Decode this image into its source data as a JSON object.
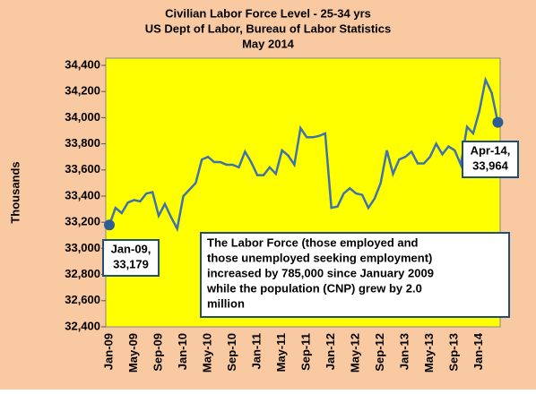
{
  "chart_data": {
    "type": "line",
    "title": [
      "Civilian Labor Force Level - 25-34 yrs",
      "US Dept of Labor, Bureau of Labor Statistics",
      "May 2014"
    ],
    "y_label": "Thousands",
    "categories": [
      "Jan-09",
      null,
      null,
      null,
      "May-09",
      null,
      null,
      null,
      "Sep-09",
      null,
      null,
      null,
      "Jan-10",
      null,
      null,
      null,
      "May-10",
      null,
      null,
      null,
      "Sep-10",
      null,
      null,
      null,
      "Jan-11",
      null,
      null,
      null,
      "May-11",
      null,
      null,
      null,
      "Sep-11",
      null,
      null,
      null,
      "Jan-12",
      null,
      null,
      null,
      "May-12",
      null,
      null,
      null,
      "Sep-12",
      null,
      null,
      null,
      "Jan-13",
      null,
      null,
      null,
      "May-13",
      null,
      null,
      null,
      "Sep-13",
      null,
      null,
      null,
      "Jan-14",
      null,
      null,
      null
    ],
    "series": [
      {
        "color": "#3f72ad",
        "values": [
          33179,
          33310,
          33270,
          33350,
          33370,
          33360,
          33420,
          33430,
          33250,
          33340,
          33240,
          33150,
          33400,
          33450,
          33500,
          33680,
          33700,
          33660,
          33660,
          33640,
          33640,
          33620,
          33740,
          33660,
          33560,
          33560,
          33620,
          33570,
          33750,
          33710,
          33640,
          33920,
          33850,
          33850,
          33860,
          33880,
          33310,
          33320,
          33420,
          33460,
          33420,
          33410,
          33310,
          33380,
          33500,
          33750,
          33570,
          33680,
          33700,
          33740,
          33650,
          33650,
          33700,
          33800,
          33720,
          33780,
          33750,
          33640,
          33930,
          33880,
          34050,
          34290,
          34190,
          33964
        ]
      }
    ],
    "ylim": [
      32400,
      34400
    ],
    "yticks": [
      {
        "value": 32400,
        "label": "32,400"
      },
      {
        "value": 32600,
        "label": "32,600"
      },
      {
        "value": 32800,
        "label": "32,800"
      },
      {
        "value": 33000,
        "label": "33,000"
      },
      {
        "value": 33200,
        "label": "33,200"
      },
      {
        "value": 33400,
        "label": "33,400"
      },
      {
        "value": 33600,
        "label": "33,600"
      },
      {
        "value": 33800,
        "label": "33,800"
      },
      {
        "value": 34000,
        "label": "34,000"
      },
      {
        "value": 34200,
        "label": "34,200"
      },
      {
        "value": 34400,
        "label": "34,400"
      }
    ],
    "grid": false,
    "marker_color": "#2e5c94",
    "annotations": [
      {
        "lines": [
          "Jan-09,",
          "33,179"
        ],
        "index": 0
      },
      {
        "lines": [
          "Apr-14,",
          "33,964"
        ],
        "index": 63
      }
    ],
    "text_box": [
      "The Labor  Force (those employed and",
      "those unemployed seeking employment)",
      "increased by 785,000 since January  2009",
      "while the population (CNP) grew by 2.0",
      "million"
    ]
  }
}
